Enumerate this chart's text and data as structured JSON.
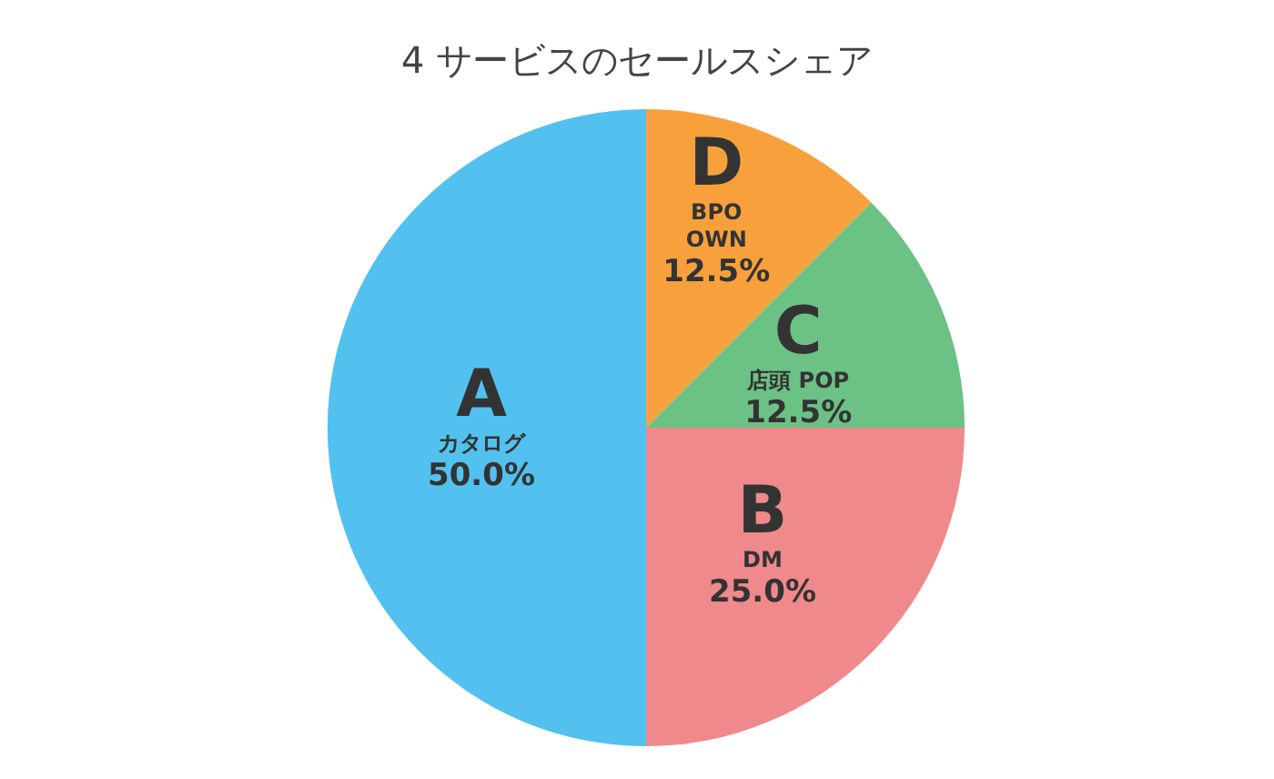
{
  "chart_data": {
    "type": "pie",
    "title": "4 サービスのセールスシェア",
    "categories": [
      "D\nBPO\nOWN",
      "C\n店頭 POP",
      "B\nDM",
      "A\nカタログ"
    ],
    "values": [
      12.5,
      12.5,
      25,
      50
    ],
    "value_labels": [
      "12.5%",
      "12.5%",
      "25.0%",
      "50.0%"
    ],
    "colors": [
      "#f8a13c",
      "#6cc184",
      "#f0898c",
      "#52c1f0"
    ]
  }
}
